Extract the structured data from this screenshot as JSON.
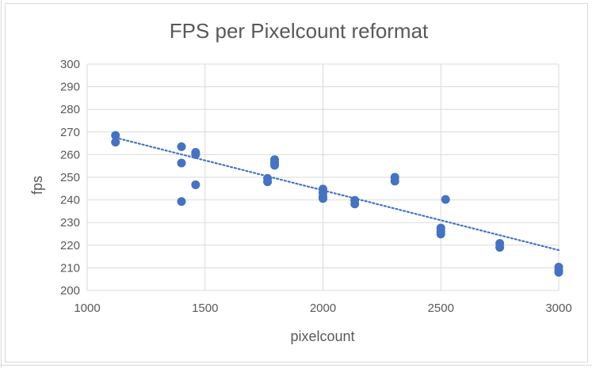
{
  "chart_data": {
    "type": "scatter",
    "title": "FPS per Pixelcount reformat",
    "xlabel": "pixelcount",
    "ylabel": "fps",
    "xlim": [
      1000,
      3000
    ],
    "ylim": [
      200,
      300
    ],
    "x_ticks": [
      1000,
      1500,
      2000,
      2500,
      3000
    ],
    "y_ticks": [
      200,
      210,
      220,
      230,
      240,
      250,
      260,
      270,
      280,
      290,
      300
    ],
    "x_tick_labels": [
      "1000",
      "1500",
      "2000",
      "2500",
      "3000"
    ],
    "y_tick_labels": [
      "200",
      "210",
      "220",
      "230",
      "240",
      "250",
      "260",
      "270",
      "280",
      "290",
      "300"
    ],
    "grid": true,
    "legend": "none",
    "marker_color": "#4472c4",
    "trendline": {
      "type": "linear",
      "style": "dotted",
      "color": "#4472c4",
      "from": [
        1120,
        267.5
      ],
      "to": [
        3000,
        217.8
      ]
    },
    "series": [
      {
        "points": [
          [
            1120,
            268.5
          ],
          [
            1120,
            265.5
          ],
          [
            1400,
            263.5
          ],
          [
            1400,
            256.3
          ],
          [
            1400,
            239.3
          ],
          [
            1460,
            261.0
          ],
          [
            1460,
            260.0
          ],
          [
            1460,
            246.7
          ],
          [
            1765,
            249.5
          ],
          [
            1765,
            248.0
          ],
          [
            1795,
            257.8
          ],
          [
            1795,
            256.5
          ],
          [
            1795,
            255.3
          ],
          [
            2000,
            244.8
          ],
          [
            2000,
            243.2
          ],
          [
            2000,
            241.5
          ],
          [
            2000,
            240.6
          ],
          [
            2135,
            239.8
          ],
          [
            2135,
            238.2
          ],
          [
            2305,
            250.0
          ],
          [
            2305,
            248.3
          ],
          [
            2500,
            227.6
          ],
          [
            2500,
            226.3
          ],
          [
            2500,
            224.9
          ],
          [
            2520,
            240.2
          ],
          [
            2750,
            220.8
          ],
          [
            2750,
            219.0
          ],
          [
            3000,
            210.3
          ],
          [
            3000,
            208.8
          ],
          [
            3000,
            208.0
          ]
        ]
      }
    ]
  }
}
